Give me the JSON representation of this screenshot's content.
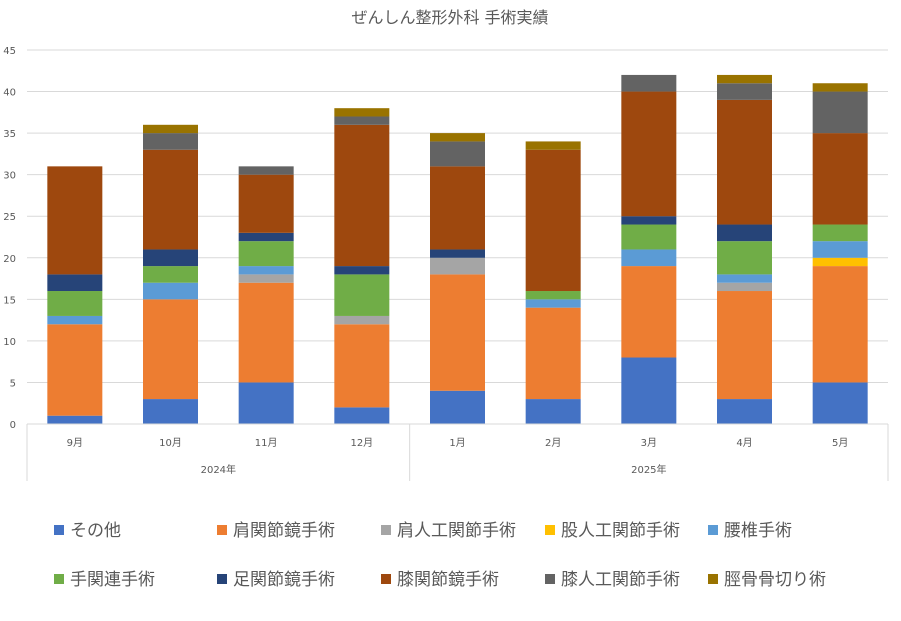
{
  "chart_data": {
    "type": "bar",
    "stacked": true,
    "title": "ぜんしん整形外科 手術実績",
    "ylim": [
      0,
      45
    ],
    "yticks": [
      0,
      5,
      10,
      15,
      20,
      25,
      30,
      35,
      40,
      45
    ],
    "grid": true,
    "legend_position": "bottom",
    "categories": [
      "9月",
      "10月",
      "11月",
      "12月",
      "1月",
      "2月",
      "3月",
      "4月",
      "5月"
    ],
    "groups": [
      {
        "label": "2024年",
        "start": 0,
        "end": 3
      },
      {
        "label": "2025年",
        "start": 4,
        "end": 8
      }
    ],
    "series": [
      {
        "name": "その他",
        "color": "#4472C4",
        "values": [
          1,
          3,
          5,
          2,
          4,
          3,
          8,
          3,
          5
        ]
      },
      {
        "name": "肩関節鏡手術",
        "color": "#ED7D31",
        "values": [
          11,
          12,
          12,
          10,
          14,
          11,
          11,
          13,
          14
        ]
      },
      {
        "name": "肩人工関節手術",
        "color": "#A5A5A5",
        "values": [
          0,
          0,
          1,
          1,
          2,
          0,
          0,
          1,
          0
        ]
      },
      {
        "name": "股人工関節手術",
        "color": "#FFC000",
        "values": [
          0,
          0,
          0,
          0,
          0,
          0,
          0,
          0,
          1
        ]
      },
      {
        "name": "腰椎手術",
        "color": "#5B9BD5",
        "values": [
          1,
          2,
          1,
          0,
          0,
          1,
          2,
          1,
          2
        ]
      },
      {
        "name": "手関連手術",
        "color": "#70AD47",
        "values": [
          3,
          2,
          3,
          5,
          0,
          1,
          3,
          4,
          2
        ]
      },
      {
        "name": "足関節鏡手術",
        "color": "#264478",
        "values": [
          2,
          2,
          1,
          1,
          1,
          0,
          1,
          2,
          0
        ]
      },
      {
        "name": "膝関節鏡手術",
        "color": "#9E480E",
        "values": [
          13,
          12,
          7,
          17,
          10,
          17,
          15,
          15,
          11
        ]
      },
      {
        "name": "膝人工関節手術",
        "color": "#636363",
        "values": [
          0,
          2,
          1,
          1,
          3,
          0,
          2,
          2,
          5
        ]
      },
      {
        "name": "脛骨骨切り術",
        "color": "#997300",
        "values": [
          0,
          1,
          0,
          1,
          1,
          1,
          0,
          1,
          1
        ]
      }
    ]
  }
}
